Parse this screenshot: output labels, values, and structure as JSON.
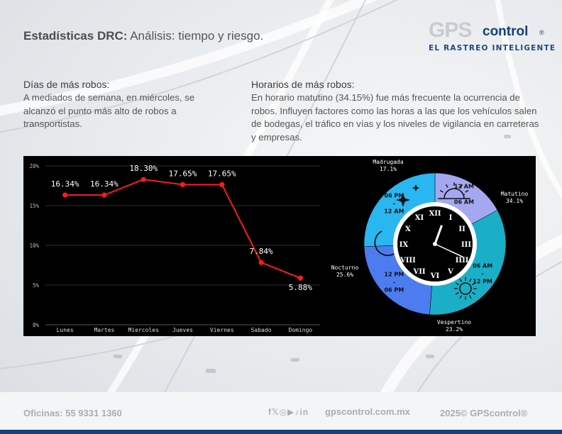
{
  "header": {
    "title_bold": "Estadísticas DRC:",
    "title_rest": " Análisis: tiempo y riesgo.",
    "logo_gps": "GPS",
    "logo_control": "control",
    "logo_reg": "®",
    "logo_tagline": "EL RASTREO INTELIGENTE"
  },
  "left_section": {
    "heading": "Días de más robos:",
    "body": "A mediados de semana, en miércoles, se alcanzó el punto más alto de robos a transportistas."
  },
  "right_section": {
    "heading": "Horarios de más robos:",
    "body": "En horario matutino (34.15%) fue más frecuente la ocurrencia de robos. Influyen factores como las horas a las que los vehículos salen de bodegas, el tráfico en vías y los niveles de vigilancia en carreteras y empresas."
  },
  "chart_data": [
    {
      "type": "line",
      "categories": [
        "Lunes",
        "Martes",
        "Miercoles",
        "Jueves",
        "Viernes",
        "Sabado",
        "Domingo"
      ],
      "values": [
        16.34,
        16.34,
        18.3,
        17.65,
        17.65,
        7.84,
        5.88
      ],
      "data_labels": [
        "16.34%",
        "16.34%",
        "18.30%",
        "17.65%",
        "17.65%",
        "7.84%",
        "5.88%"
      ],
      "yticks": [
        "0%",
        "5%",
        "10%",
        "15%",
        "20%"
      ],
      "ylim": [
        0,
        20
      ],
      "grid": true,
      "color": "#ff1a1a"
    },
    {
      "type": "pie",
      "labels": [
        "Madrugada",
        "Matutino",
        "Vespertino",
        "Nocturno"
      ],
      "values": [
        17.1,
        34.1,
        23.2,
        25.6
      ],
      "value_labels": [
        "17.1%",
        "34.1%",
        "23.2%",
        "25.6%"
      ],
      "time_ranges": [
        {
          "from": "12 AM",
          "sep": "-",
          "to": "06 AM"
        },
        {
          "from": "06 AM",
          "sep": "-",
          "to": "12 PM"
        },
        {
          "from": "12 PM",
          "sep": "-",
          "to": "06 PM"
        },
        {
          "from": "06 PM",
          "sep": "-",
          "to": "12 AM"
        }
      ],
      "colors": [
        "#a5a8f0",
        "#1aafc7",
        "#4c7cf0",
        "#2ab6f0"
      ],
      "icons": [
        "sparkle-stars-icon",
        "sunrise-icon",
        "sun-icon",
        "crescent-moon-icon"
      ],
      "clock_numerals": [
        "XII",
        "I",
        "II",
        "III",
        "IIII",
        "V",
        "VI",
        "VII",
        "VIII",
        "IX",
        "X",
        "XI"
      ]
    }
  ],
  "footer": {
    "offices": "Oficinas: 55 9331 1360",
    "social_icons": [
      "facebook-icon",
      "twitter-icon",
      "instagram-icon",
      "youtube-icon",
      "tiktok-icon",
      "linkedin-icon"
    ],
    "social_glyphs": "f𝕏◎▶♪in",
    "website": "gpscontrol.com.mx",
    "copyright": "2025© GPScontrol®"
  }
}
